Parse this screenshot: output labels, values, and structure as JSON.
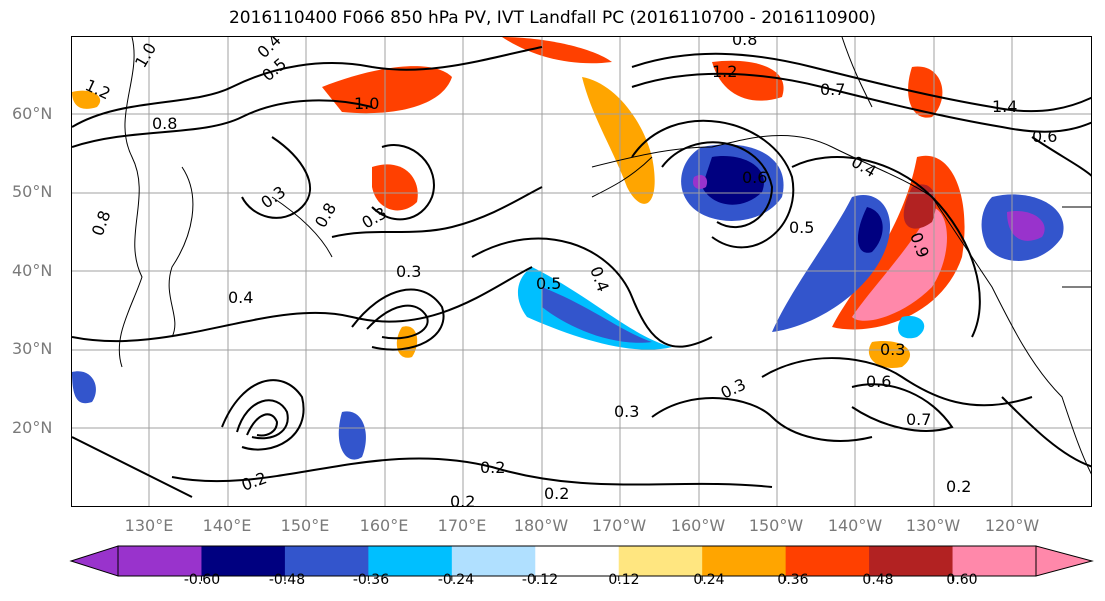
{
  "title": "2016110400 F066 850 hPa PV, IVT Landfall PC (2016110700 - 2016110900)",
  "lat_labels": [
    "60°N",
    "50°N",
    "40°N",
    "30°N",
    "20°N"
  ],
  "lon_labels": [
    "130°E",
    "140°E",
    "150°E",
    "160°E",
    "170°E",
    "180°W",
    "170°W",
    "160°W",
    "150°W",
    "140°W",
    "130°W",
    "120°W"
  ],
  "colorbar": {
    "ticks": [
      "-0.60",
      "-0.48",
      "-0.36",
      "-0.24",
      "-0.12",
      "0.12",
      "0.24",
      "0.36",
      "0.48",
      "0.60"
    ],
    "colors": [
      "#9933cc",
      "#000080",
      "#3355cc",
      "#00bfff",
      "#b0e0ff",
      "#ffffff",
      "#ffe680",
      "#ffa500",
      "#ff4000",
      "#b22222",
      "#ff88aa",
      "#ff88aa"
    ]
  },
  "contour_labels": [
    {
      "text": "1.0"
    },
    {
      "text": "0.4"
    },
    {
      "text": "1.2"
    },
    {
      "text": "0.5"
    },
    {
      "text": "0.8"
    },
    {
      "text": "1.0"
    },
    {
      "text": "0.8"
    },
    {
      "text": "0.3"
    },
    {
      "text": "0.3"
    },
    {
      "text": "0.4"
    },
    {
      "text": "0.3"
    },
    {
      "text": "0.5"
    },
    {
      "text": "0.4"
    },
    {
      "text": "0.6"
    },
    {
      "text": "0.5"
    },
    {
      "text": "0.4"
    },
    {
      "text": "0.7"
    },
    {
      "text": "0.3"
    },
    {
      "text": "0.6"
    },
    {
      "text": "0.7"
    },
    {
      "text": "0.3"
    },
    {
      "text": "0.3"
    },
    {
      "text": "0.2"
    },
    {
      "text": "0.2"
    },
    {
      "text": "0.2"
    },
    {
      "text": "0.2"
    },
    {
      "text": "0.2"
    },
    {
      "text": "0.6"
    },
    {
      "text": "1.2"
    },
    {
      "text": "1.4"
    },
    {
      "text": "0.8"
    },
    {
      "text": "0.8"
    },
    {
      "text": "0.9"
    }
  ]
}
